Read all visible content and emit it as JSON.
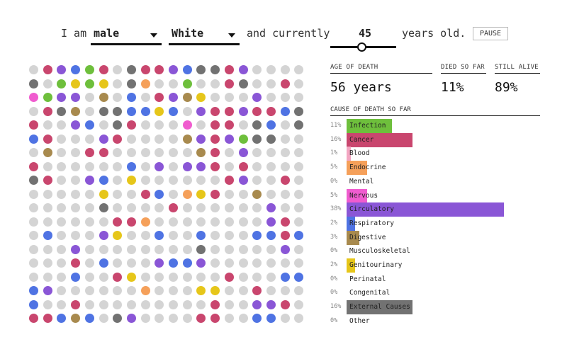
{
  "sentence": {
    "prefix": "I am",
    "sex": "male",
    "race": "White",
    "middle": "and currently",
    "age": "45",
    "suffix": "years old.",
    "pause_label": "PAUSE",
    "age_slider_fraction": 0.45
  },
  "stats": {
    "age_of_death_label": "AGE OF DEATH",
    "age_of_death_value": "56 years",
    "died_label": "DIED SO FAR",
    "died_value": "11%",
    "alive_label": "STILL ALIVE",
    "alive_value": "89%"
  },
  "causes": {
    "header": "CAUSE OF DEATH SO FAR",
    "items": [
      {
        "pct": "11%",
        "name": "Infection",
        "value": 11,
        "color": "#6ebf3c"
      },
      {
        "pct": "16%",
        "name": "Cancer",
        "value": 16,
        "color": "#c9466e"
      },
      {
        "pct": "1%",
        "name": "Blood",
        "value": 1,
        "color": "#f3a6c2"
      },
      {
        "pct": "5%",
        "name": "Endocrine",
        "value": 5,
        "color": "#f5a05a"
      },
      {
        "pct": "0%",
        "name": "Mental",
        "value": 0,
        "color": "#9cd4e6"
      },
      {
        "pct": "5%",
        "name": "Nervous",
        "value": 5,
        "color": "#f05ccf"
      },
      {
        "pct": "38%",
        "name": "Circulatory",
        "value": 38,
        "color": "#8a56d6"
      },
      {
        "pct": "2%",
        "name": "Respiratory",
        "value": 2,
        "color": "#4f73e3"
      },
      {
        "pct": "3%",
        "name": "Digestive",
        "value": 3,
        "color": "#a88a4e"
      },
      {
        "pct": "0%",
        "name": "Musculoskeletal",
        "value": 0,
        "color": "#cccccc"
      },
      {
        "pct": "2%",
        "name": "Genitourinary",
        "value": 2,
        "color": "#e6c61a"
      },
      {
        "pct": "0%",
        "name": "Perinatal",
        "value": 0,
        "color": "#cccccc"
      },
      {
        "pct": "0%",
        "name": "Congenital",
        "value": 0,
        "color": "#cccccc"
      },
      {
        "pct": "16%",
        "name": "External Causes",
        "value": 16,
        "color": "#727272"
      },
      {
        "pct": "0%",
        "name": "Other",
        "value": 0,
        "color": "#cccccc"
      }
    ]
  },
  "grid": {
    "rows": 19,
    "cols": 20,
    "alive_color": "#d4d4d4",
    "dots": "ABDGCBAFBBDGFFBDAAAAFACHCHAFEAACAABFAABAJCDDAIAGABDIHAAADAAAABFIAFFGGHGADBBDBBGFBAADGAFBAAAJABBAFGAFGBAAADBAAAAIDBDCFFAAAIAABBAAAAAAIBADAAAABAAAAAAGADADDBABAAAAFBAADGAHAAAAAABDAABAAAAAAHAABGAEHBAAIAAAAAAAAFAAAABAAAAAADAAAAAAAABBEAAAAAAAADBAAGAAADHAAGAAGAAAGGBGAAADAAAAAAAAFAAAAADAAAABAGAAADGGDAAAAAAAAAAGAABHAAAAAABAAAGGGDAAAAAAEAAAHHAABAAAGAABAAAAAAAAABAADDBABBGIGAFDAAAABBAAGGAAAFAAAAIDAAAAAAAAAAABAAAJAAAAGAAAAGAAAAABAAADAAAAHBAAAAGAAAAAAADAAAAAAAAAAABAADAAADAGBAAAAAAAAAAAAAAAGAAAAAAAAAAAAAGBAAAAAAAA"
  }
}
